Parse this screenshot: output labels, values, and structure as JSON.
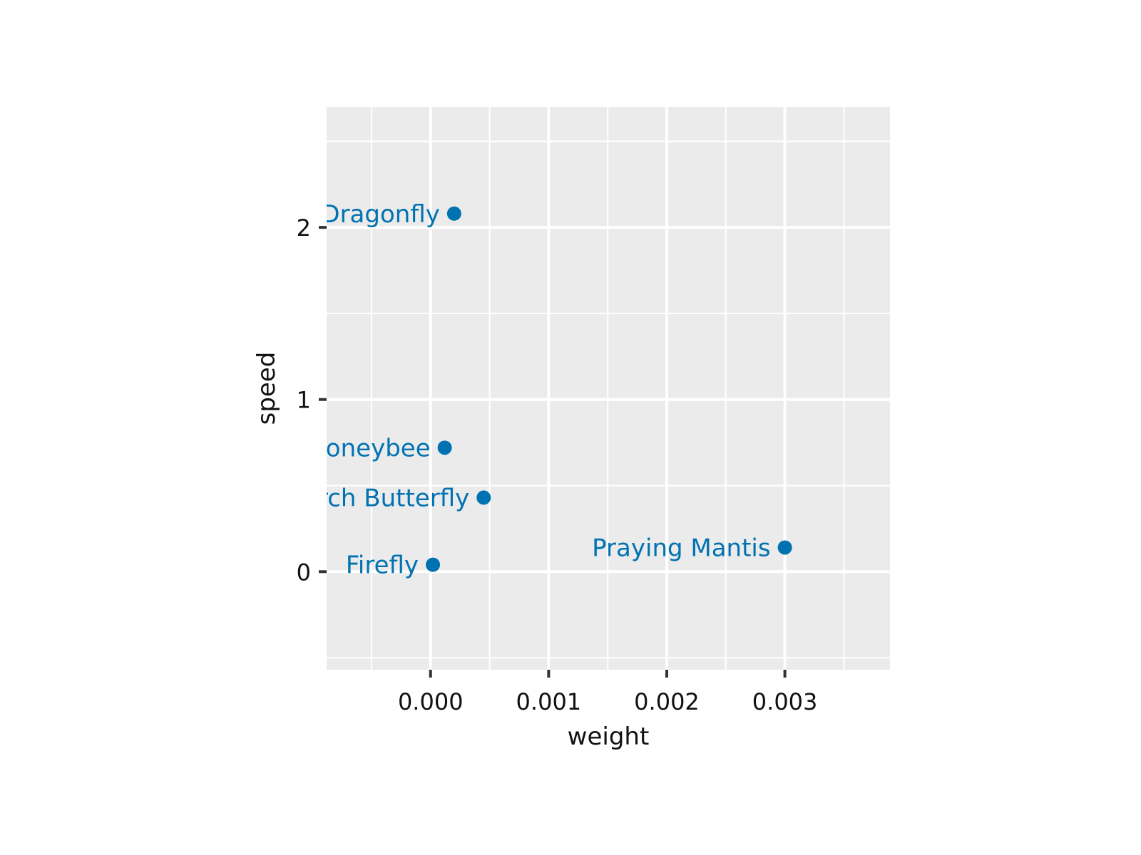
{
  "chart_data": {
    "type": "scatter",
    "xlabel": "weight",
    "ylabel": "speed",
    "xlim": [
      -0.00088,
      0.00389
    ],
    "ylim": [
      -0.57,
      2.7
    ],
    "x_ticks": [
      0.0,
      0.001,
      0.002,
      0.003
    ],
    "x_tick_labels": [
      "0.000",
      "0.001",
      "0.002",
      "0.003"
    ],
    "y_ticks": [
      0,
      1,
      2
    ],
    "y_tick_labels": [
      "0",
      "1",
      "2"
    ],
    "grid": true,
    "point_color": "#0072B2",
    "panel_color": "#EBEBEB",
    "points": [
      {
        "label": "Dragonfly",
        "x": 0.0002,
        "y": 2.08
      },
      {
        "label": "Honeybee",
        "x": 0.00012,
        "y": 0.72
      },
      {
        "label": "Monarch Butterfly",
        "x": 0.00045,
        "y": 0.43
      },
      {
        "label": "Praying Mantis",
        "x": 0.003,
        "y": 0.14
      },
      {
        "label": "Firefly",
        "x": 2e-05,
        "y": 0.04
      }
    ]
  }
}
